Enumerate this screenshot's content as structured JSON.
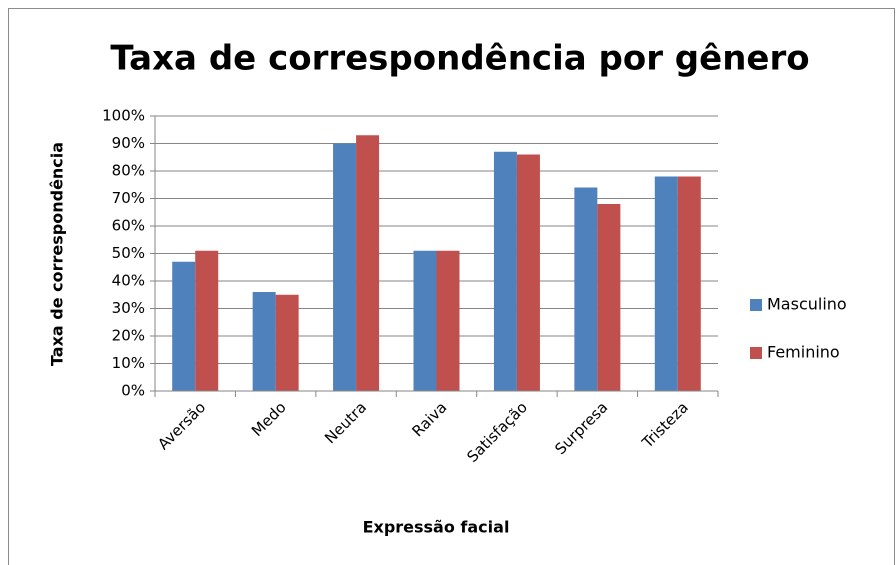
{
  "chart_data": {
    "type": "bar",
    "title": "Taxa de correspondência por gênero",
    "x_label": "Expressão facial",
    "y_label": "Taxa de correspondência",
    "categories": [
      "Aversão",
      "Medo",
      "Neutra",
      "Raiva",
      "Satisfação",
      "Surpresa",
      "Tristeza"
    ],
    "series": [
      {
        "name": "Masculino",
        "color": "#4f81bd",
        "values": [
          47,
          36,
          90,
          51,
          87,
          74,
          78
        ]
      },
      {
        "name": "Feminino",
        "color": "#c0504d",
        "values": [
          51,
          35,
          93,
          51,
          86,
          68,
          78
        ]
      }
    ],
    "ylim": [
      0,
      100
    ],
    "yticks": [
      {
        "value": 0,
        "label": "0%"
      },
      {
        "value": 10,
        "label": "10%"
      },
      {
        "value": 20,
        "label": "20%"
      },
      {
        "value": 30,
        "label": "30%"
      },
      {
        "value": 40,
        "label": "40%"
      },
      {
        "value": 50,
        "label": "50%"
      },
      {
        "value": 60,
        "label": "60%"
      },
      {
        "value": 70,
        "label": "70%"
      },
      {
        "value": 80,
        "label": "80%"
      },
      {
        "value": 90,
        "label": "90%"
      },
      {
        "value": 100,
        "label": "100%"
      }
    ],
    "grid": true,
    "legend": "right"
  }
}
